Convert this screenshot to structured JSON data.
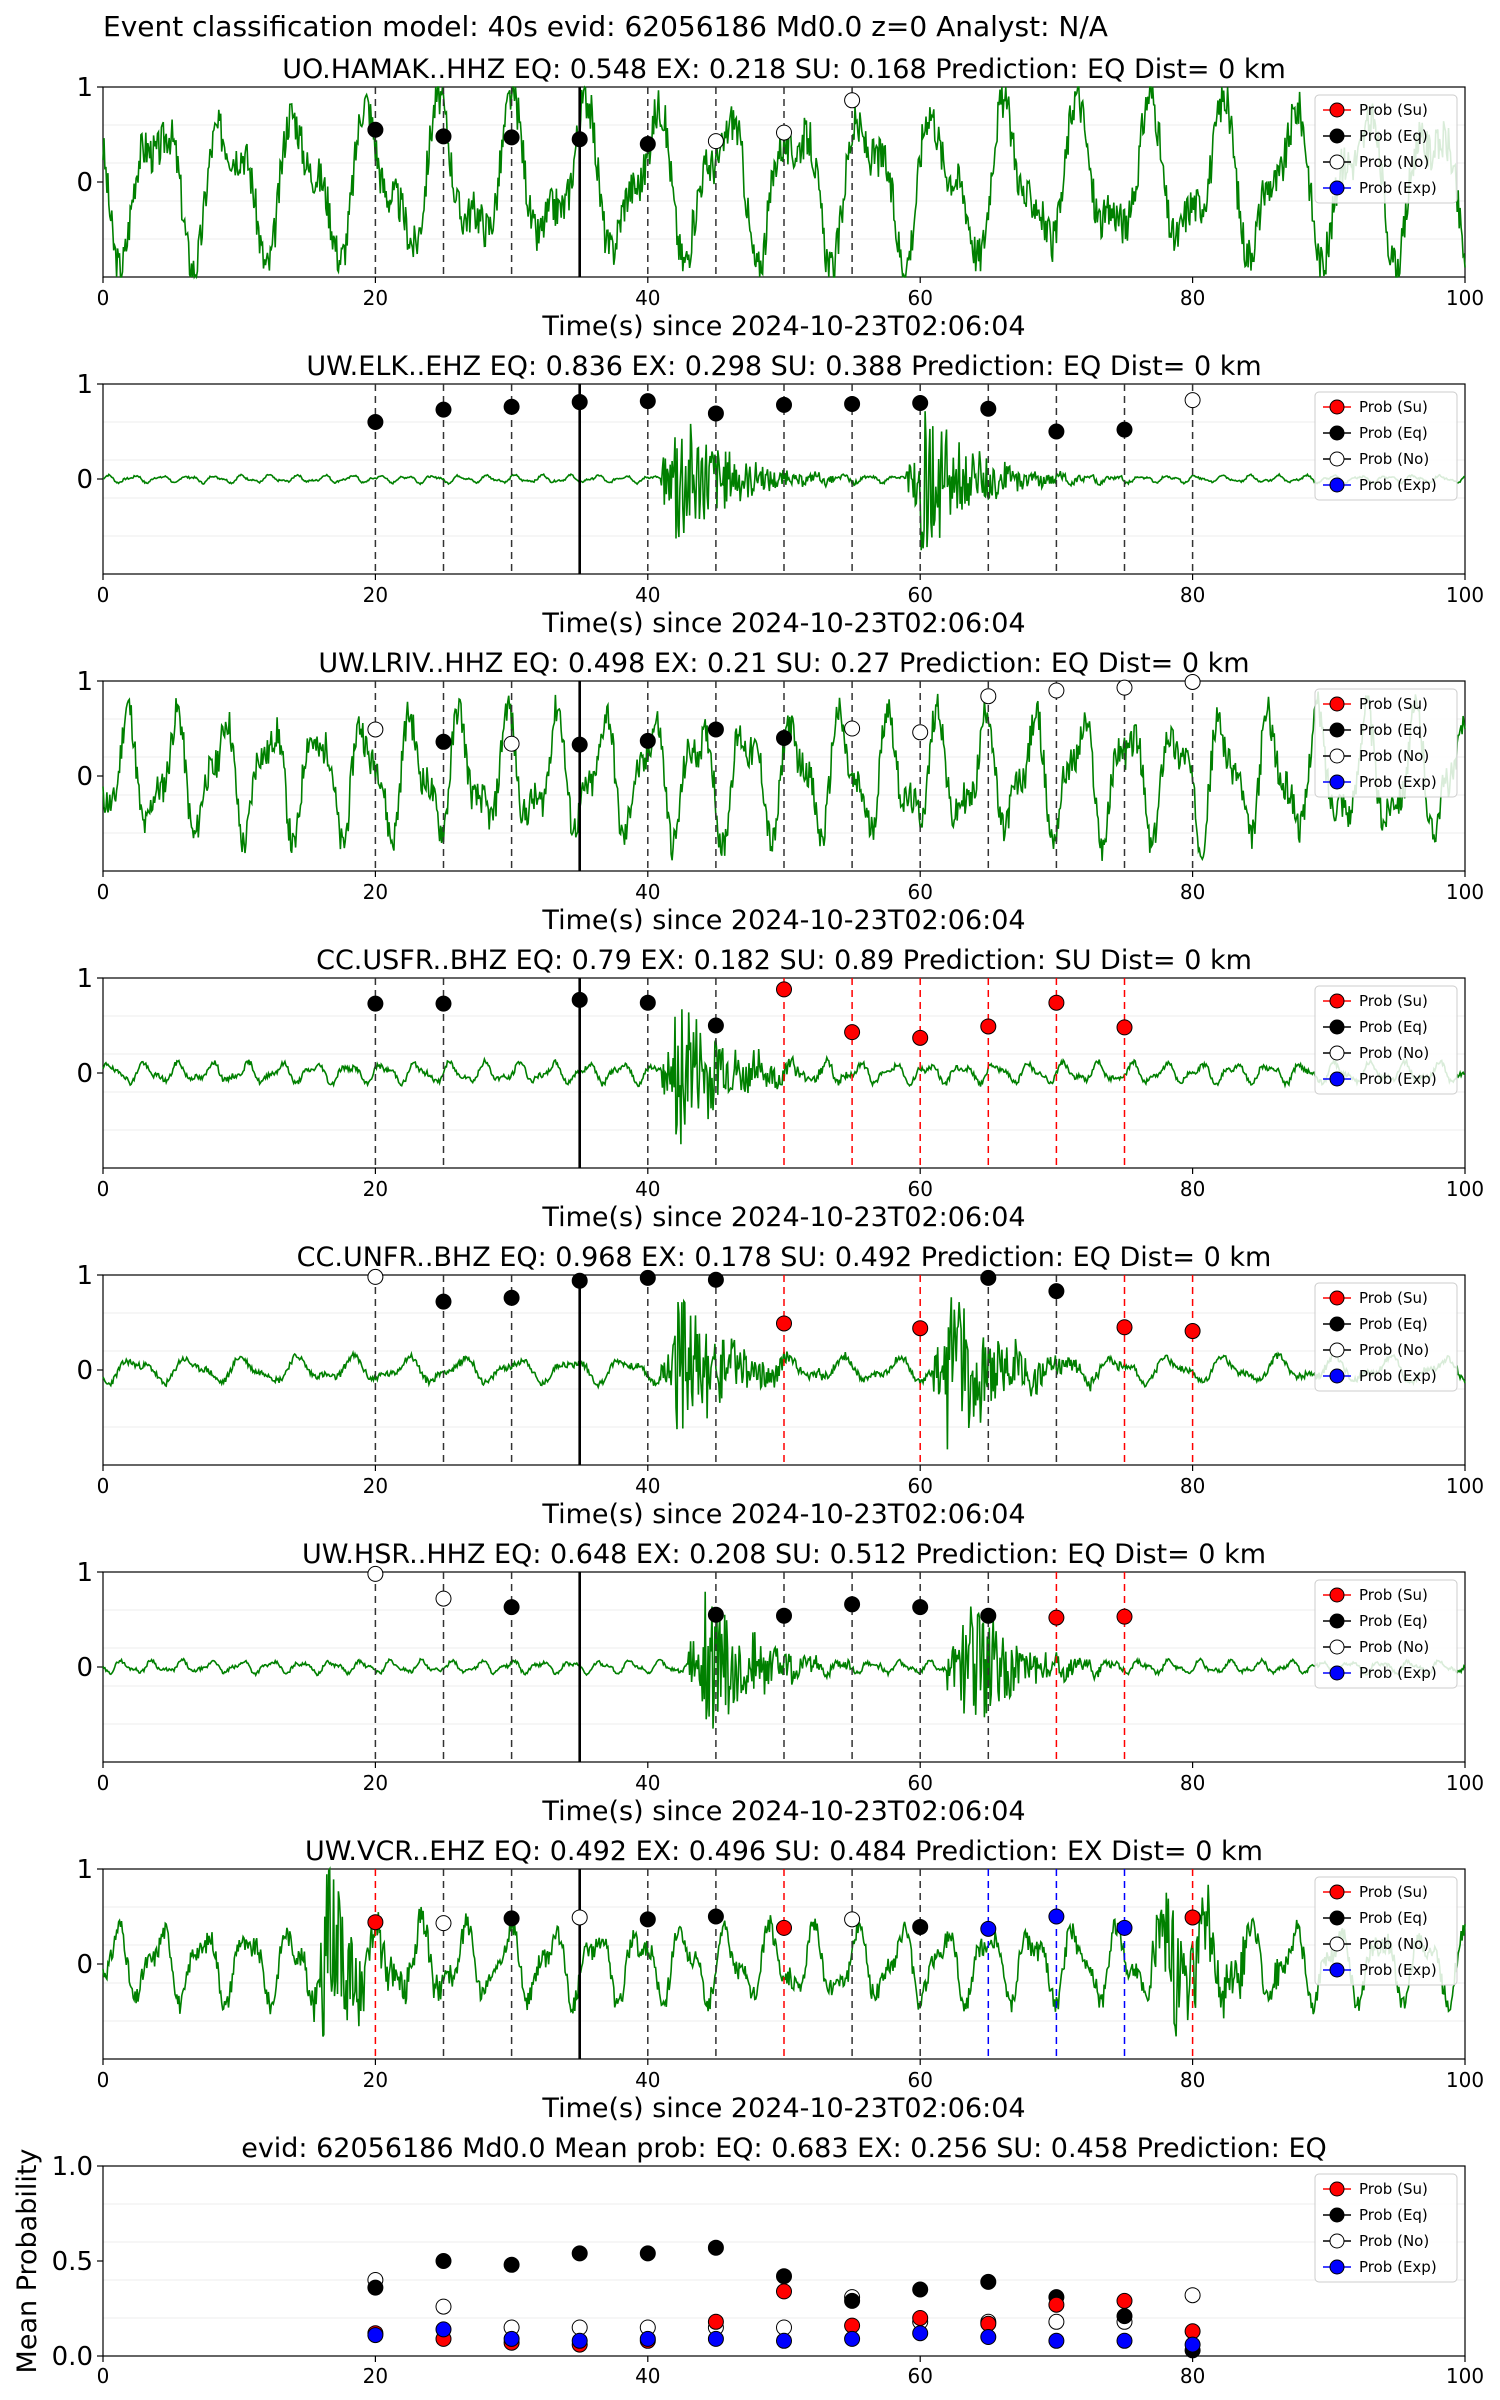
{
  "figure_title": "Event classification model: 40s evid: 62056186 Md0.0 z=0 Analyst: N/A",
  "legend_labels": [
    "Prob (Su)",
    "Prob (Eq)",
    "Prob (No)",
    "Prob (Exp)"
  ],
  "colors": {
    "trace": "#008000",
    "su": "#ff0000",
    "eq": "#000000",
    "no": "#ffffff",
    "exp": "#0000ff",
    "current_time_line": "#000000"
  },
  "chart_data": [
    {
      "type": "line",
      "title": "UO.HAMAK..HHZ   EQ: 0.548  EX: 0.218  SU: 0.168   Prediction: EQ    Dist= 0 km",
      "xlabel": "Time(s) since 2024-10-23T02:06:04",
      "xlim": [
        0,
        100
      ],
      "ylim": [
        -1,
        1
      ],
      "xticks": [
        0,
        20,
        40,
        60,
        80,
        100
      ],
      "yticks": [
        0,
        1
      ],
      "trace": {
        "character": "noise_oscillation",
        "amplitude": 0.62,
        "period_s": 5.2,
        "burst_at_s": null,
        "seed": 3
      },
      "vline_current": 35,
      "windows": [
        {
          "t": 20,
          "p": 0.55,
          "cls": "eq"
        },
        {
          "t": 25,
          "p": 0.48,
          "cls": "eq"
        },
        {
          "t": 30,
          "p": 0.47,
          "cls": "eq"
        },
        {
          "t": 35,
          "p": 0.45,
          "cls": "eq"
        },
        {
          "t": 40,
          "p": 0.4,
          "cls": "eq"
        },
        {
          "t": 45,
          "p": 0.43,
          "cls": "no"
        },
        {
          "t": 50,
          "p": 0.52,
          "cls": "no"
        },
        {
          "t": 55,
          "p": 0.86,
          "cls": "no"
        }
      ]
    },
    {
      "type": "line",
      "title": "UW.ELK..EHZ   EQ: 0.836  EX: 0.298  SU: 0.388   Prediction: EQ    Dist= 0 km",
      "xlabel": "Time(s) since 2024-10-23T02:06:04",
      "xlim": [
        0,
        100
      ],
      "ylim": [
        -1,
        1
      ],
      "xticks": [
        0,
        20,
        40,
        60,
        80,
        100
      ],
      "yticks": [
        0,
        1
      ],
      "trace": {
        "character": "quiet_bursts",
        "amplitude": 0.03,
        "period_s": 2,
        "burst_at_s": [
          42,
          60
        ],
        "seed": 7
      },
      "vline_current": 35,
      "windows": [
        {
          "t": 20,
          "p": 0.6,
          "cls": "eq"
        },
        {
          "t": 25,
          "p": 0.73,
          "cls": "eq"
        },
        {
          "t": 30,
          "p": 0.76,
          "cls": "eq"
        },
        {
          "t": 35,
          "p": 0.81,
          "cls": "eq"
        },
        {
          "t": 40,
          "p": 0.82,
          "cls": "eq"
        },
        {
          "t": 45,
          "p": 0.69,
          "cls": "eq"
        },
        {
          "t": 50,
          "p": 0.78,
          "cls": "eq"
        },
        {
          "t": 55,
          "p": 0.79,
          "cls": "eq"
        },
        {
          "t": 60,
          "p": 0.8,
          "cls": "eq"
        },
        {
          "t": 65,
          "p": 0.74,
          "cls": "eq"
        },
        {
          "t": 70,
          "p": 0.5,
          "cls": "eq"
        },
        {
          "t": 75,
          "p": 0.52,
          "cls": "eq"
        },
        {
          "t": 80,
          "p": 0.83,
          "cls": "no"
        }
      ]
    },
    {
      "type": "line",
      "title": "UW.LRIV..HHZ   EQ: 0.498  EX: 0.21  SU: 0.27   Prediction: EQ    Dist= 0 km",
      "xlabel": "Time(s) since 2024-10-23T02:06:04",
      "xlim": [
        0,
        100
      ],
      "ylim": [
        -1,
        1
      ],
      "xticks": [
        0,
        20,
        40,
        60,
        80,
        100
      ],
      "yticks": [
        0,
        1
      ],
      "trace": {
        "character": "noisy_oscillation",
        "amplitude": 0.5,
        "period_s": 3.5,
        "burst_at_s": null,
        "seed": 11
      },
      "vline_current": 35,
      "windows": [
        {
          "t": 20,
          "p": 0.49,
          "cls": "no"
        },
        {
          "t": 25,
          "p": 0.36,
          "cls": "eq"
        },
        {
          "t": 30,
          "p": 0.34,
          "cls": "no"
        },
        {
          "t": 35,
          "p": 0.33,
          "cls": "eq"
        },
        {
          "t": 40,
          "p": 0.37,
          "cls": "eq"
        },
        {
          "t": 45,
          "p": 0.49,
          "cls": "eq"
        },
        {
          "t": 50,
          "p": 0.4,
          "cls": "eq"
        },
        {
          "t": 55,
          "p": 0.5,
          "cls": "no"
        },
        {
          "t": 60,
          "p": 0.46,
          "cls": "no"
        },
        {
          "t": 65,
          "p": 0.84,
          "cls": "no"
        },
        {
          "t": 70,
          "p": 0.9,
          "cls": "no"
        },
        {
          "t": 75,
          "p": 0.93,
          "cls": "no"
        },
        {
          "t": 80,
          "p": 0.99,
          "cls": "no"
        }
      ]
    },
    {
      "type": "line",
      "title": "CC.USFR..BHZ   EQ: 0.79  EX: 0.182  SU: 0.89   Prediction: SU    Dist= 0 km",
      "xlabel": "Time(s) since 2024-10-23T02:06:04",
      "xlim": [
        0,
        100
      ],
      "ylim": [
        -1,
        1
      ],
      "xticks": [
        0,
        20,
        40,
        60,
        80,
        100
      ],
      "yticks": [
        0,
        1
      ],
      "trace": {
        "character": "quiet_long_burst",
        "amplitude": 0.08,
        "period_s": 2.5,
        "burst_at_s": [
          42
        ],
        "seed": 19
      },
      "vline_current": 35,
      "windows": [
        {
          "t": 20,
          "p": 0.73,
          "cls": "eq"
        },
        {
          "t": 25,
          "p": 0.73,
          "cls": "eq"
        },
        {
          "t": 35,
          "p": 0.77,
          "cls": "eq"
        },
        {
          "t": 40,
          "p": 0.74,
          "cls": "eq"
        },
        {
          "t": 45,
          "p": 0.5,
          "cls": "eq"
        },
        {
          "t": 50,
          "p": 0.88,
          "cls": "su"
        },
        {
          "t": 55,
          "p": 0.43,
          "cls": "su"
        },
        {
          "t": 60,
          "p": 0.37,
          "cls": "su"
        },
        {
          "t": 65,
          "p": 0.49,
          "cls": "su"
        },
        {
          "t": 70,
          "p": 0.74,
          "cls": "su"
        },
        {
          "t": 75,
          "p": 0.48,
          "cls": "su"
        }
      ]
    },
    {
      "type": "line",
      "title": "CC.UNFR..BHZ   EQ: 0.968  EX: 0.178  SU: 0.492   Prediction: EQ    Dist= 0 km",
      "xlabel": "Time(s) since 2024-10-23T02:06:04",
      "xlim": [
        0,
        100
      ],
      "ylim": [
        -1,
        1
      ],
      "xticks": [
        0,
        20,
        40,
        60,
        80,
        100
      ],
      "yticks": [
        0,
        1
      ],
      "trace": {
        "character": "quiet_bursts",
        "amplitude": 0.1,
        "period_s": 4,
        "burst_at_s": [
          42,
          62
        ],
        "seed": 23
      },
      "vline_current": 35,
      "windows": [
        {
          "t": 20,
          "p": 0.98,
          "cls": "no"
        },
        {
          "t": 25,
          "p": 0.72,
          "cls": "eq"
        },
        {
          "t": 30,
          "p": 0.76,
          "cls": "eq"
        },
        {
          "t": 35,
          "p": 0.94,
          "cls": "eq"
        },
        {
          "t": 40,
          "p": 0.97,
          "cls": "eq"
        },
        {
          "t": 45,
          "p": 0.95,
          "cls": "eq"
        },
        {
          "t": 50,
          "p": 0.49,
          "cls": "su"
        },
        {
          "t": 60,
          "p": 0.44,
          "cls": "su"
        },
        {
          "t": 65,
          "p": 0.97,
          "cls": "eq"
        },
        {
          "t": 70,
          "p": 0.83,
          "cls": "eq"
        },
        {
          "t": 75,
          "p": 0.45,
          "cls": "su"
        },
        {
          "t": 80,
          "p": 0.41,
          "cls": "su"
        }
      ]
    },
    {
      "type": "line",
      "title": "UW.HSR..HHZ   EQ: 0.648  EX: 0.208  SU: 0.512   Prediction: EQ    Dist= 0 km",
      "xlabel": "Time(s) since 2024-10-23T02:06:04",
      "xlim": [
        0,
        100
      ],
      "ylim": [
        -1,
        1
      ],
      "xticks": [
        0,
        20,
        40,
        60,
        80,
        100
      ],
      "yticks": [
        0,
        1
      ],
      "trace": {
        "character": "quiet_bursts",
        "amplitude": 0.05,
        "period_s": 2.2,
        "burst_at_s": [
          44,
          63
        ],
        "seed": 29
      },
      "vline_current": 35,
      "windows": [
        {
          "t": 20,
          "p": 0.98,
          "cls": "no"
        },
        {
          "t": 25,
          "p": 0.72,
          "cls": "no"
        },
        {
          "t": 30,
          "p": 0.63,
          "cls": "eq"
        },
        {
          "t": 45,
          "p": 0.55,
          "cls": "eq"
        },
        {
          "t": 50,
          "p": 0.54,
          "cls": "eq"
        },
        {
          "t": 55,
          "p": 0.66,
          "cls": "eq"
        },
        {
          "t": 60,
          "p": 0.63,
          "cls": "eq"
        },
        {
          "t": 65,
          "p": 0.54,
          "cls": "eq"
        },
        {
          "t": 70,
          "p": 0.52,
          "cls": "su"
        },
        {
          "t": 75,
          "p": 0.53,
          "cls": "su"
        }
      ]
    },
    {
      "type": "line",
      "title": "UW.VCR..EHZ   EQ: 0.492  EX: 0.496  SU: 0.484   Prediction: EX    Dist= 0 km",
      "xlabel": "Time(s) since 2024-10-23T02:06:04",
      "xlim": [
        0,
        100
      ],
      "ylim": [
        -1,
        1
      ],
      "xticks": [
        0,
        20,
        40,
        60,
        80,
        100
      ],
      "yticks": [
        0,
        1
      ],
      "trace": {
        "character": "noise_oscillation",
        "amplitude": 0.3,
        "period_s": 3.2,
        "burst_at_s": [
          16,
          78
        ],
        "seed": 31
      },
      "vline_current": 35,
      "windows": [
        {
          "t": 20,
          "p": 0.44,
          "cls": "su"
        },
        {
          "t": 25,
          "p": 0.43,
          "cls": "no"
        },
        {
          "t": 30,
          "p": 0.48,
          "cls": "eq"
        },
        {
          "t": 35,
          "p": 0.49,
          "cls": "no"
        },
        {
          "t": 40,
          "p": 0.47,
          "cls": "eq"
        },
        {
          "t": 45,
          "p": 0.5,
          "cls": "eq"
        },
        {
          "t": 50,
          "p": 0.38,
          "cls": "su"
        },
        {
          "t": 55,
          "p": 0.47,
          "cls": "no"
        },
        {
          "t": 60,
          "p": 0.39,
          "cls": "eq"
        },
        {
          "t": 65,
          "p": 0.37,
          "cls": "exp"
        },
        {
          "t": 70,
          "p": 0.5,
          "cls": "exp"
        },
        {
          "t": 75,
          "p": 0.38,
          "cls": "exp"
        },
        {
          "t": 80,
          "p": 0.49,
          "cls": "su"
        }
      ]
    },
    {
      "type": "scatter",
      "title": "evid: 62056186  Md0.0   Mean prob:   EQ: 0.683  EX: 0.256  SU: 0.458   Prediction: EQ",
      "xlabel": "",
      "ylabel": "Mean Probability",
      "xlim": [
        0,
        100
      ],
      "ylim": [
        0,
        1
      ],
      "xticks": [
        0,
        20,
        40,
        60,
        80,
        100
      ],
      "yticks": [
        0,
        0.5,
        1
      ],
      "ytick_labels": [
        "0.0",
        "0.5",
        "1.0"
      ],
      "x": [
        20,
        25,
        30,
        35,
        40,
        45,
        50,
        55,
        60,
        65,
        70,
        75,
        80
      ],
      "series": [
        {
          "name": "Prob (Su)",
          "cls": "su",
          "values": [
            0.12,
            0.09,
            0.07,
            0.06,
            0.08,
            0.18,
            0.34,
            0.16,
            0.2,
            0.17,
            0.27,
            0.29,
            0.13
          ]
        },
        {
          "name": "Prob (Eq)",
          "cls": "eq",
          "values": [
            0.36,
            0.5,
            0.48,
            0.54,
            0.54,
            0.57,
            0.42,
            0.29,
            0.35,
            0.39,
            0.31,
            0.21,
            0.03
          ]
        },
        {
          "name": "Prob (No)",
          "cls": "no",
          "values": [
            0.4,
            0.26,
            0.15,
            0.15,
            0.15,
            0.15,
            0.15,
            0.31,
            0.18,
            0.18,
            0.18,
            0.18,
            0.32
          ]
        },
        {
          "name": "Prob (Exp)",
          "cls": "exp",
          "values": [
            0.11,
            0.14,
            0.09,
            0.08,
            0.09,
            0.09,
            0.08,
            0.09,
            0.12,
            0.1,
            0.08,
            0.08,
            0.06
          ]
        }
      ]
    }
  ]
}
